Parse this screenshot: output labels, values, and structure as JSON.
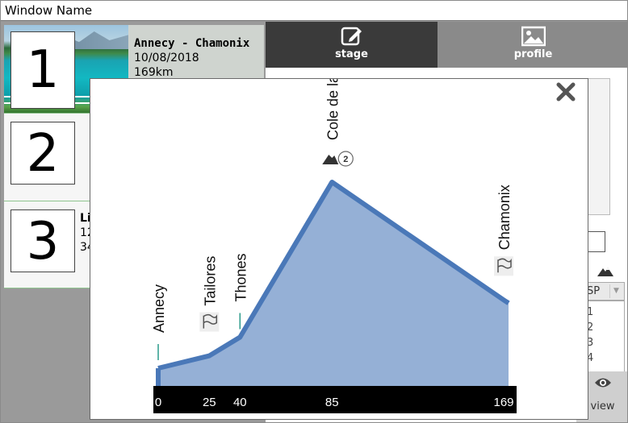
{
  "window": {
    "title": "Window Name"
  },
  "stages": [
    {
      "number": "1",
      "name": "Annecy - Chamonix",
      "date": "10/08/2018",
      "distance": "169km"
    },
    {
      "number": "2"
    },
    {
      "number": "3",
      "name_fragment": "Li",
      "line2_fragment": "12",
      "line3_fragment": "34"
    }
  ],
  "tabs": {
    "stage_label": "stage",
    "profile_label": "profile",
    "stage_icon": "edit-icon",
    "profile_icon": "image-icon"
  },
  "right_panel": {
    "t_fragment": "t",
    "sp_select": {
      "value": "SP"
    },
    "sp_options": [
      "1",
      "2",
      "3",
      "4"
    ],
    "view_label": "view"
  },
  "modal": {
    "close_icon": "close-icon"
  },
  "colors": {
    "profile_fill": "#95b0d6",
    "profile_line": "#4a78b8",
    "axis_bg": "#000000",
    "dark_tab": "#3a3a3a"
  },
  "chart_data": {
    "type": "area",
    "x": [
      0,
      25,
      40,
      85,
      169
    ],
    "y": [
      1,
      1.2,
      1.5,
      4,
      2.1
    ],
    "x_tick_labels": [
      "0",
      "25",
      "40",
      "85",
      "169"
    ],
    "points_of_interest": [
      {
        "km": 0,
        "label": "Annecy",
        "marker": "tick"
      },
      {
        "km": 25,
        "label": "Tailores",
        "marker": "flag-icon"
      },
      {
        "km": 40,
        "label": "Thones",
        "marker": "tick"
      },
      {
        "km": 85,
        "label": "Cole de la Croix Fry",
        "marker": "mountain-icon",
        "category": "2"
      },
      {
        "km": 169,
        "label": "Chamonix",
        "marker": "flag-icon"
      }
    ]
  }
}
